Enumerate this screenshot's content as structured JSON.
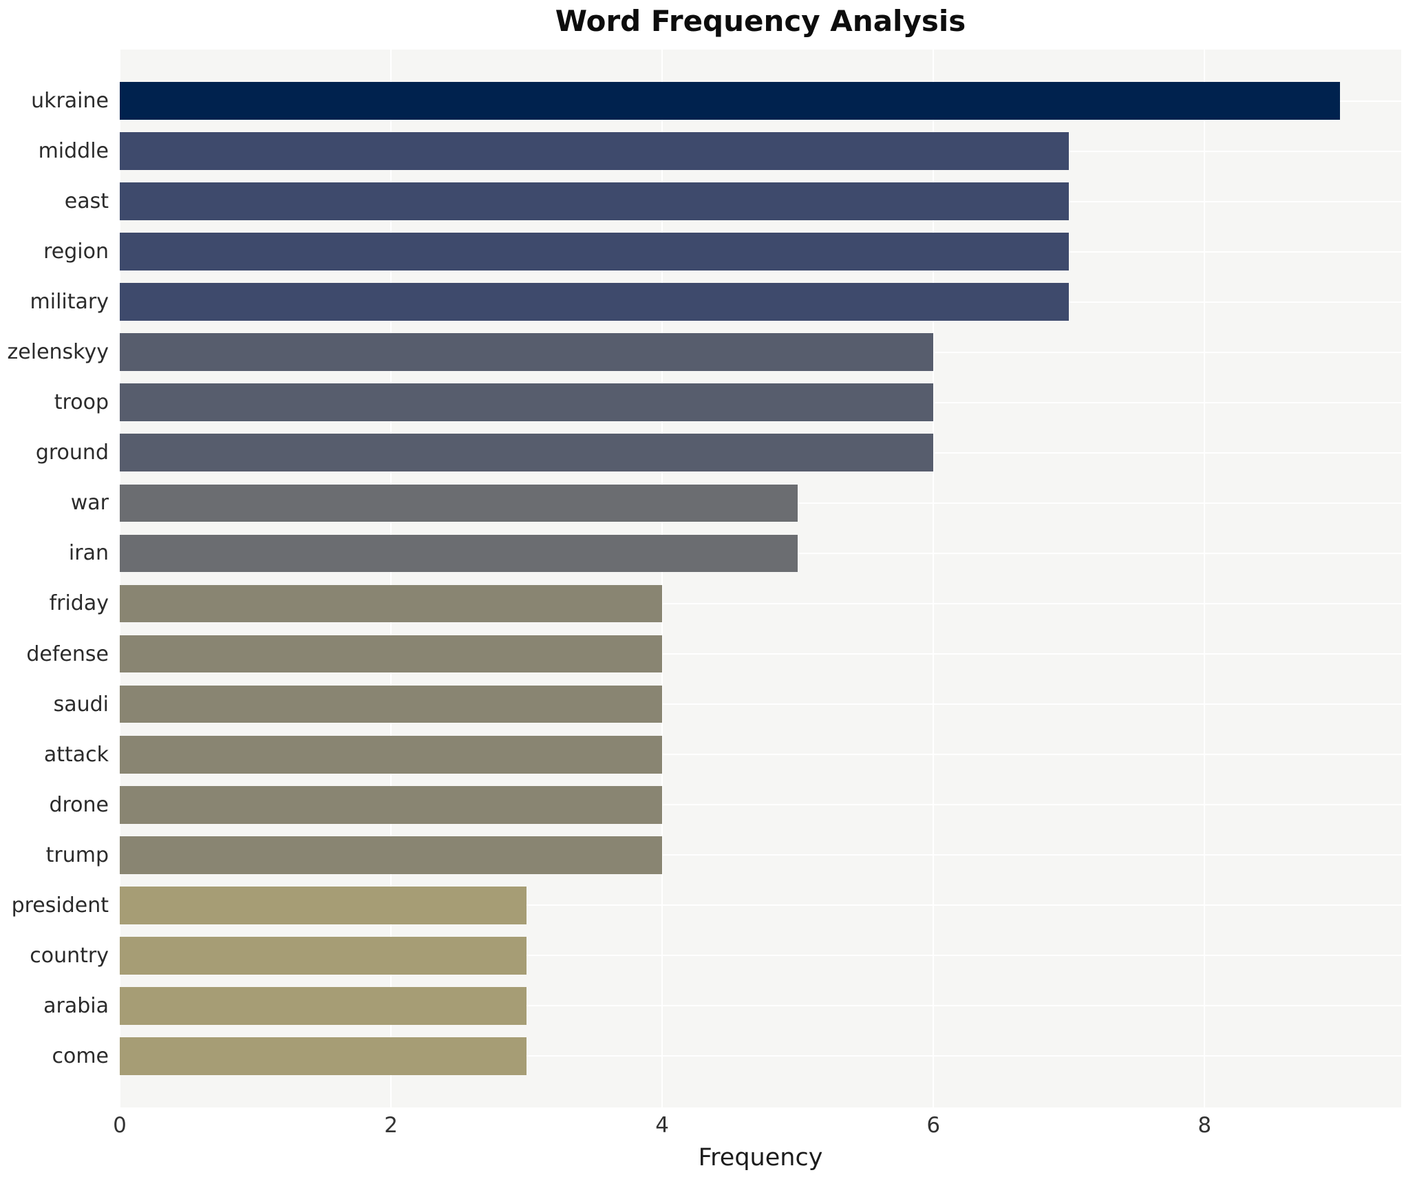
{
  "chart_data": {
    "type": "bar",
    "orientation": "horizontal",
    "title": "Word Frequency Analysis",
    "xlabel": "Frequency",
    "ylabel": "",
    "categories": [
      "ukraine",
      "middle",
      "east",
      "region",
      "military",
      "zelenskyy",
      "troop",
      "ground",
      "war",
      "iran",
      "friday",
      "defense",
      "saudi",
      "attack",
      "drone",
      "trump",
      "president",
      "country",
      "arabia",
      "come"
    ],
    "values": [
      9,
      7,
      7,
      7,
      7,
      6,
      6,
      6,
      5,
      5,
      4,
      4,
      4,
      4,
      4,
      4,
      3,
      3,
      3,
      3
    ],
    "bar_colors": [
      "#00224e",
      "#3e4a6c",
      "#3e4a6c",
      "#3e4a6c",
      "#3e4a6c",
      "#575d6d",
      "#575d6d",
      "#575d6d",
      "#6b6d71",
      "#6b6d71",
      "#898572",
      "#898572",
      "#898572",
      "#898572",
      "#898572",
      "#898572",
      "#a69d75",
      "#a69d75",
      "#a69d75",
      "#a69d75"
    ],
    "xlim": [
      0,
      9.45
    ],
    "xticks": [
      0,
      2,
      4,
      6,
      8
    ],
    "grid": true,
    "grid_color": "#ffffff",
    "plot_background": "#f6f6f4",
    "figure_background": "#ffffff",
    "legend": false
  }
}
